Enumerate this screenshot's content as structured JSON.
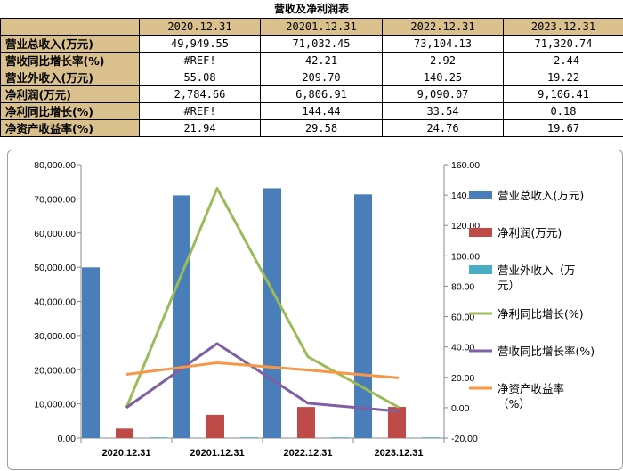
{
  "table": {
    "title": "营收及净利润表",
    "headers": [
      "",
      "2020.12.31",
      "20201.12.31",
      "2022.12.31",
      "2023.12.31"
    ],
    "rows": [
      {
        "label": "营业总收入(万元)",
        "values": [
          "49,949.55",
          "71,032.45",
          "73,104.13",
          "71,320.74"
        ]
      },
      {
        "label": "营收同比增长率(%)",
        "values": [
          "#REF!",
          "42.21",
          "2.92",
          "-2.44"
        ]
      },
      {
        "label": "营业外收入(万元)",
        "values": [
          "55.08",
          "209.70",
          "140.25",
          "19.22"
        ]
      },
      {
        "label": "净利润(万元)",
        "values": [
          "2,784.66",
          "6,806.91",
          "9,090.07",
          "9,106.41"
        ]
      },
      {
        "label": "净利同比增长(%)",
        "values": [
          "#REF!",
          "144.44",
          "33.54",
          "0.18"
        ]
      },
      {
        "label": "净资产收益率(%)",
        "values": [
          "21.94",
          "29.58",
          "24.76",
          "19.67"
        ]
      }
    ]
  },
  "chart_data": {
    "type": "bar",
    "categories": [
      "2020.12.31",
      "20201.12.31",
      "2022.12.31",
      "2023.12.31"
    ],
    "left_axis": {
      "min": 0,
      "max": 80000,
      "step": 10000,
      "tick_labels": [
        "0.00",
        "10,000.00",
        "20,000.00",
        "30,000.00",
        "40,000.00",
        "50,000.00",
        "60,000.00",
        "70,000.00",
        "80,000.00"
      ]
    },
    "right_axis": {
      "min": -20,
      "max": 160,
      "step": 20,
      "tick_labels": [
        "-20.00",
        "0.00",
        "20.00",
        "40.00",
        "60.00",
        "80.00",
        "100.00",
        "120.00",
        "140.00",
        "160.00"
      ]
    },
    "bar_series": [
      {
        "name": "营业总收入(万元)",
        "color": "#4a7ebb",
        "values": [
          49949.55,
          71032.45,
          73104.13,
          71320.74
        ]
      },
      {
        "name": "净利润(万元)",
        "color": "#be4b48",
        "values": [
          2784.66,
          6806.91,
          9090.07,
          9106.41
        ]
      },
      {
        "name": "营业外收入（万元）",
        "color": "#4bacc6",
        "values": [
          55.08,
          209.7,
          140.25,
          19.22
        ]
      }
    ],
    "line_series": [
      {
        "name": "净利同比增长(%)",
        "color": "#9bbb59",
        "values": [
          0,
          144.44,
          33.54,
          0.18
        ]
      },
      {
        "name": "营收同比增长率(%)",
        "color": "#7f5fa3",
        "values": [
          0,
          42.21,
          2.92,
          -2.44
        ]
      },
      {
        "name": "净资产收益率（%）",
        "color": "#f79646",
        "values": [
          21.94,
          29.58,
          24.76,
          19.67
        ]
      }
    ],
    "legend": [
      {
        "lines": [
          "营业总收入(万元)"
        ],
        "kind": "bar",
        "color": "#4a7ebb"
      },
      {
        "lines": [
          "净利润(万元)"
        ],
        "kind": "bar",
        "color": "#be4b48"
      },
      {
        "lines": [
          "营业外收入（万",
          "元）"
        ],
        "kind": "bar",
        "color": "#4bacc6"
      },
      {
        "lines": [
          "净利同比增长(%)"
        ],
        "kind": "line",
        "color": "#9bbb59"
      },
      {
        "lines": [
          "营收同比增长率(%)"
        ],
        "kind": "line",
        "color": "#7f5fa3"
      },
      {
        "lines": [
          "净资产收益率",
          "（%）"
        ],
        "kind": "line",
        "color": "#f79646"
      }
    ],
    "legend_position": "right"
  }
}
